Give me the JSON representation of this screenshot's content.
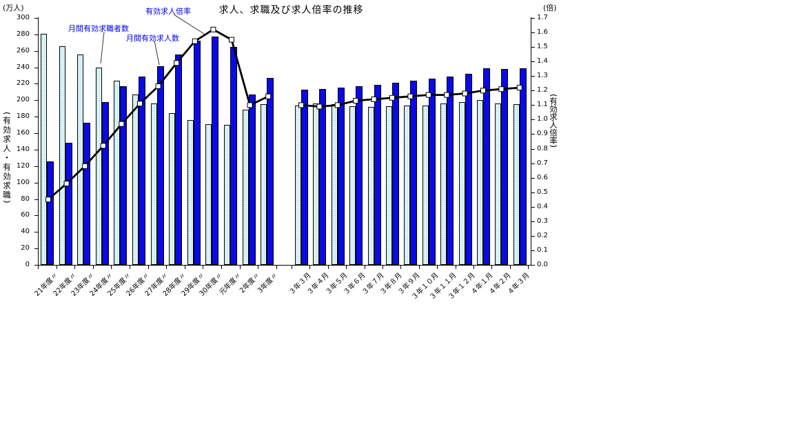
{
  "title": "求人、求職及び求人倍率の推移",
  "axis_left": {
    "unit": "(万人)",
    "title": "(有効求人・有効求職)",
    "min": 0,
    "max": 300,
    "step": 20
  },
  "axis_right": {
    "unit": "(倍)",
    "title": "(有効求人倍率)",
    "min": 0,
    "max": 1.7,
    "step": 0.1
  },
  "annotations": {
    "ratio_label": "有効求人倍率",
    "seekers_label": "月間有効求職者数",
    "openings_label": "月間有効求人数"
  },
  "colors": {
    "seekers_bar_base": "#DFF5F7",
    "seekers_bar_dot": "#7EC9D4",
    "openings_bar": "#0A0AE8",
    "line": "#000000",
    "marker_fill": "#FFFFFF",
    "annotation_text": "#0000E6"
  },
  "chart_data": {
    "type": "bar+line",
    "ylabel_left": "有効求人・有効求職 (万人)",
    "ylabel_right": "有効求人倍率 (倍)",
    "ylim_left": [
      0,
      300
    ],
    "ylim_right": [
      0,
      1.7
    ],
    "grid": false,
    "legend": "annotated with leader lines",
    "series": [
      {
        "name": "月間有効求職者数",
        "type": "bar",
        "axis": "left"
      },
      {
        "name": "月間有効求人数",
        "type": "bar",
        "axis": "left"
      },
      {
        "name": "有効求人倍率",
        "type": "line",
        "axis": "right"
      }
    ],
    "groups": [
      {
        "name": "fiscal-years",
        "categories": [
          "21年度〃",
          "22年度〃",
          "23年度〃",
          "24年度〃",
          "25年度〃",
          "26年度〃",
          "27年度〃",
          "28年度〃",
          "29年度〃",
          "30年度〃",
          "元年度〃",
          "2年度〃",
          "3年度〃"
        ],
        "seekers": [
          281,
          266,
          256,
          240,
          224,
          207,
          196,
          184,
          176,
          171,
          170,
          189,
          195
        ],
        "openings": [
          126,
          148,
          173,
          198,
          217,
          229,
          241,
          256,
          272,
          277,
          265,
          207,
          227
        ],
        "ratio": [
          0.45,
          0.56,
          0.68,
          0.82,
          0.97,
          1.11,
          1.23,
          1.39,
          1.54,
          1.62,
          1.55,
          1.1,
          1.16
        ]
      },
      {
        "name": "monthly",
        "categories": [
          "３年３月",
          "３年４月",
          "３年５月",
          "３年６月",
          "３年７月",
          "３年８月",
          "３年９月",
          "３年１０月",
          "３年１１月",
          "３年１２月",
          "４年１月",
          "４年２月",
          "４年３月"
        ],
        "seekers": [
          194,
          196,
          195,
          193,
          192,
          193,
          194,
          194,
          196,
          198,
          200,
          196,
          195
        ],
        "openings": [
          213,
          214,
          215,
          217,
          219,
          221,
          224,
          226,
          229,
          232,
          239,
          238,
          239
        ],
        "ratio": [
          1.1,
          1.09,
          1.1,
          1.13,
          1.14,
          1.15,
          1.16,
          1.17,
          1.17,
          1.18,
          1.2,
          1.21,
          1.22
        ]
      }
    ]
  }
}
